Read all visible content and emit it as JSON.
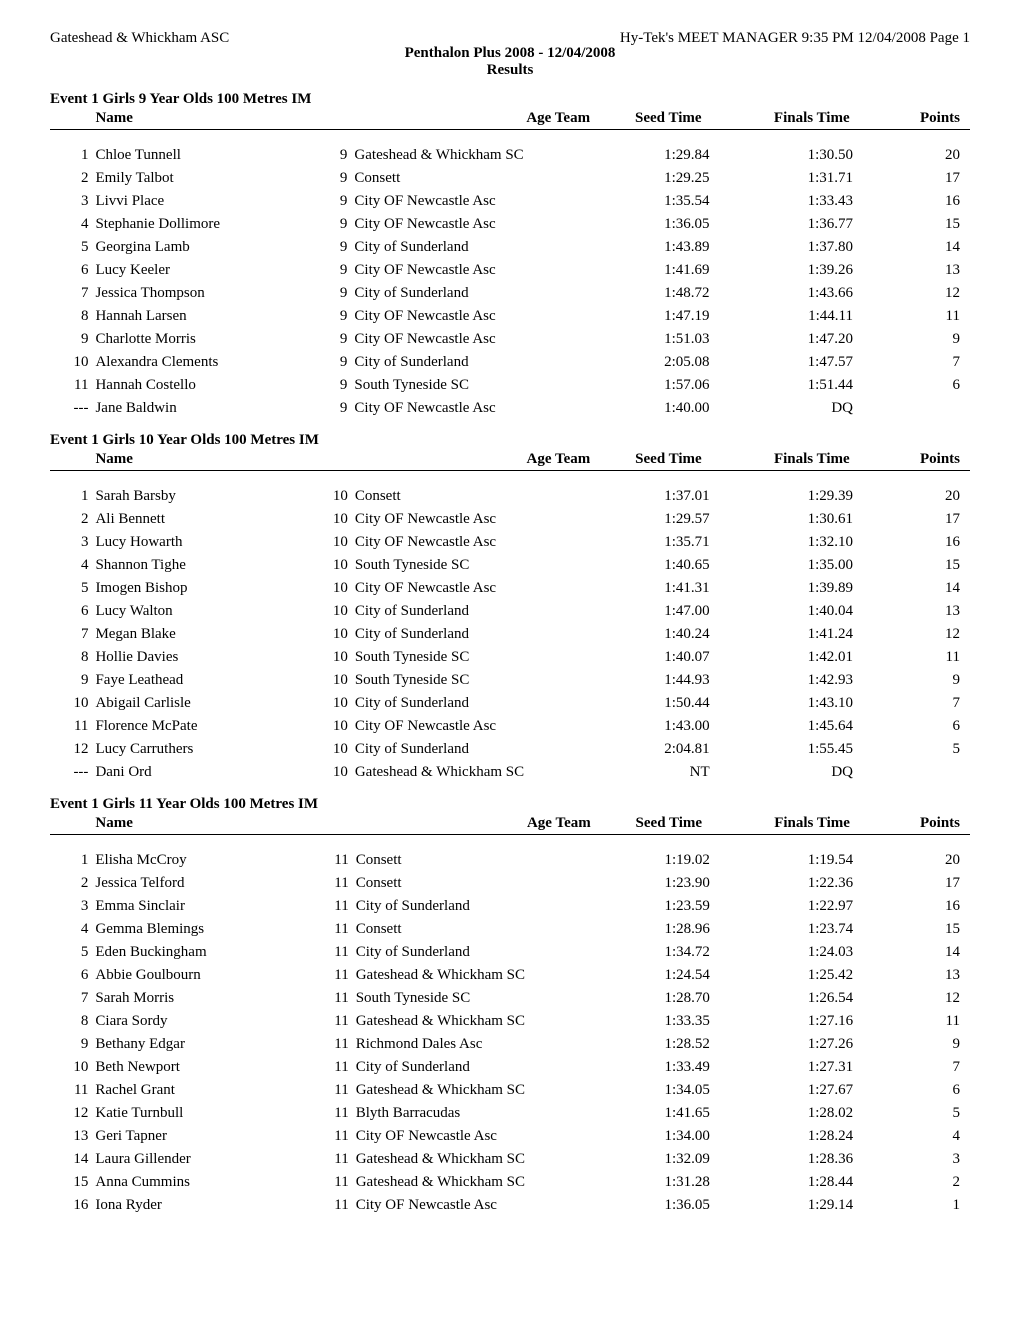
{
  "meta": {
    "org": "Gateshead & Whickham ASC",
    "right_header": "Hy-Tek's MEET MANAGER  9:35 PM  12/04/2008  Page 1",
    "meet": "Penthalon Plus 2008 - 12/04/2008",
    "section": "Results"
  },
  "columns": {
    "name": "Name",
    "age_team": "Age  Team",
    "seed": "Seed Time",
    "finals": "Finals Time",
    "points": "Points"
  },
  "events": [
    {
      "title": "Event 1  Girls 9 Year Olds 100 Metres IM",
      "rows": [
        {
          "pos": "1",
          "name": "Chloe Tunnell",
          "age": "9",
          "team": "Gateshead & Whickham SC",
          "seed": "1:29.84",
          "finals": "1:30.50",
          "points": "20"
        },
        {
          "pos": "2",
          "name": "Emily Talbot",
          "age": "9",
          "team": "Consett",
          "seed": "1:29.25",
          "finals": "1:31.71",
          "points": "17"
        },
        {
          "pos": "3",
          "name": "Livvi Place",
          "age": "9",
          "team": "City OF Newcastle Asc",
          "seed": "1:35.54",
          "finals": "1:33.43",
          "points": "16"
        },
        {
          "pos": "4",
          "name": "Stephanie Dollimore",
          "age": "9",
          "team": "City OF Newcastle Asc",
          "seed": "1:36.05",
          "finals": "1:36.77",
          "points": "15"
        },
        {
          "pos": "5",
          "name": "Georgina Lamb",
          "age": "9",
          "team": "City of Sunderland",
          "seed": "1:43.89",
          "finals": "1:37.80",
          "points": "14"
        },
        {
          "pos": "6",
          "name": "Lucy Keeler",
          "age": "9",
          "team": "City OF Newcastle Asc",
          "seed": "1:41.69",
          "finals": "1:39.26",
          "points": "13"
        },
        {
          "pos": "7",
          "name": "Jessica Thompson",
          "age": "9",
          "team": "City of Sunderland",
          "seed": "1:48.72",
          "finals": "1:43.66",
          "points": "12"
        },
        {
          "pos": "8",
          "name": "Hannah Larsen",
          "age": "9",
          "team": "City OF Newcastle Asc",
          "seed": "1:47.19",
          "finals": "1:44.11",
          "points": "11"
        },
        {
          "pos": "9",
          "name": "Charlotte Morris",
          "age": "9",
          "team": "City OF Newcastle Asc",
          "seed": "1:51.03",
          "finals": "1:47.20",
          "points": "9"
        },
        {
          "pos": "10",
          "name": "Alexandra Clements",
          "age": "9",
          "team": "City of Sunderland",
          "seed": "2:05.08",
          "finals": "1:47.57",
          "points": "7"
        },
        {
          "pos": "11",
          "name": "Hannah Costello",
          "age": "9",
          "team": "South Tyneside SC",
          "seed": "1:57.06",
          "finals": "1:51.44",
          "points": "6"
        },
        {
          "pos": "---",
          "name": "Jane Baldwin",
          "age": "9",
          "team": "City OF Newcastle Asc",
          "seed": "1:40.00",
          "finals": "DQ",
          "points": ""
        }
      ]
    },
    {
      "title": "Event 1  Girls 10 Year Olds 100 Metres IM",
      "rows": [
        {
          "pos": "1",
          "name": "Sarah Barsby",
          "age": "10",
          "team": "Consett",
          "seed": "1:37.01",
          "finals": "1:29.39",
          "points": "20"
        },
        {
          "pos": "2",
          "name": "Ali Bennett",
          "age": "10",
          "team": "City OF Newcastle Asc",
          "seed": "1:29.57",
          "finals": "1:30.61",
          "points": "17"
        },
        {
          "pos": "3",
          "name": "Lucy Howarth",
          "age": "10",
          "team": "City OF Newcastle Asc",
          "seed": "1:35.71",
          "finals": "1:32.10",
          "points": "16"
        },
        {
          "pos": "4",
          "name": "Shannon Tighe",
          "age": "10",
          "team": "South Tyneside SC",
          "seed": "1:40.65",
          "finals": "1:35.00",
          "points": "15"
        },
        {
          "pos": "5",
          "name": "Imogen Bishop",
          "age": "10",
          "team": "City OF Newcastle Asc",
          "seed": "1:41.31",
          "finals": "1:39.89",
          "points": "14"
        },
        {
          "pos": "6",
          "name": "Lucy Walton",
          "age": "10",
          "team": "City of Sunderland",
          "seed": "1:47.00",
          "finals": "1:40.04",
          "points": "13"
        },
        {
          "pos": "7",
          "name": "Megan Blake",
          "age": "10",
          "team": "City of Sunderland",
          "seed": "1:40.24",
          "finals": "1:41.24",
          "points": "12"
        },
        {
          "pos": "8",
          "name": "Hollie Davies",
          "age": "10",
          "team": "South Tyneside SC",
          "seed": "1:40.07",
          "finals": "1:42.01",
          "points": "11"
        },
        {
          "pos": "9",
          "name": "Faye Leathead",
          "age": "10",
          "team": "South Tyneside SC",
          "seed": "1:44.93",
          "finals": "1:42.93",
          "points": "9"
        },
        {
          "pos": "10",
          "name": "Abigail Carlisle",
          "age": "10",
          "team": "City of Sunderland",
          "seed": "1:50.44",
          "finals": "1:43.10",
          "points": "7"
        },
        {
          "pos": "11",
          "name": "Florence McPate",
          "age": "10",
          "team": "City OF Newcastle Asc",
          "seed": "1:43.00",
          "finals": "1:45.64",
          "points": "6"
        },
        {
          "pos": "12",
          "name": "Lucy Carruthers",
          "age": "10",
          "team": "City of Sunderland",
          "seed": "2:04.81",
          "finals": "1:55.45",
          "points": "5"
        },
        {
          "pos": "---",
          "name": "Dani Ord",
          "age": "10",
          "team": "Gateshead & Whickham SC",
          "seed": "NT",
          "finals": "DQ",
          "points": ""
        }
      ]
    },
    {
      "title": "Event 1  Girls 11 Year Olds 100 Metres IM",
      "rows": [
        {
          "pos": "1",
          "name": "Elisha McCroy",
          "age": "11",
          "team": "Consett",
          "seed": "1:19.02",
          "finals": "1:19.54",
          "points": "20"
        },
        {
          "pos": "2",
          "name": "Jessica Telford",
          "age": "11",
          "team": "Consett",
          "seed": "1:23.90",
          "finals": "1:22.36",
          "points": "17"
        },
        {
          "pos": "3",
          "name": "Emma Sinclair",
          "age": "11",
          "team": "City of Sunderland",
          "seed": "1:23.59",
          "finals": "1:22.97",
          "points": "16"
        },
        {
          "pos": "4",
          "name": "Gemma Blemings",
          "age": "11",
          "team": "Consett",
          "seed": "1:28.96",
          "finals": "1:23.74",
          "points": "15"
        },
        {
          "pos": "5",
          "name": "Eden Buckingham",
          "age": "11",
          "team": "City of Sunderland",
          "seed": "1:34.72",
          "finals": "1:24.03",
          "points": "14"
        },
        {
          "pos": "6",
          "name": "Abbie Goulbourn",
          "age": "11",
          "team": "Gateshead & Whickham SC",
          "seed": "1:24.54",
          "finals": "1:25.42",
          "points": "13"
        },
        {
          "pos": "7",
          "name": "Sarah Morris",
          "age": "11",
          "team": "South Tyneside SC",
          "seed": "1:28.70",
          "finals": "1:26.54",
          "points": "12"
        },
        {
          "pos": "8",
          "name": "Ciara Sordy",
          "age": "11",
          "team": "Gateshead & Whickham SC",
          "seed": "1:33.35",
          "finals": "1:27.16",
          "points": "11"
        },
        {
          "pos": "9",
          "name": "Bethany Edgar",
          "age": "11",
          "team": "Richmond Dales Asc",
          "seed": "1:28.52",
          "finals": "1:27.26",
          "points": "9"
        },
        {
          "pos": "10",
          "name": "Beth Newport",
          "age": "11",
          "team": "City of Sunderland",
          "seed": "1:33.49",
          "finals": "1:27.31",
          "points": "7"
        },
        {
          "pos": "11",
          "name": "Rachel Grant",
          "age": "11",
          "team": "Gateshead & Whickham SC",
          "seed": "1:34.05",
          "finals": "1:27.67",
          "points": "6"
        },
        {
          "pos": "12",
          "name": "Katie Turnbull",
          "age": "11",
          "team": "Blyth Barracudas",
          "seed": "1:41.65",
          "finals": "1:28.02",
          "points": "5"
        },
        {
          "pos": "13",
          "name": "Geri Tapner",
          "age": "11",
          "team": "City OF Newcastle Asc",
          "seed": "1:34.00",
          "finals": "1:28.24",
          "points": "4"
        },
        {
          "pos": "14",
          "name": "Laura Gillender",
          "age": "11",
          "team": "Gateshead & Whickham SC",
          "seed": "1:32.09",
          "finals": "1:28.36",
          "points": "3"
        },
        {
          "pos": "15",
          "name": "Anna Cummins",
          "age": "11",
          "team": "Gateshead & Whickham SC",
          "seed": "1:31.28",
          "finals": "1:28.44",
          "points": "2"
        },
        {
          "pos": "16",
          "name": "Iona Ryder",
          "age": "11",
          "team": "City OF Newcastle Asc",
          "seed": "1:36.05",
          "finals": "1:29.14",
          "points": "1"
        }
      ]
    }
  ]
}
